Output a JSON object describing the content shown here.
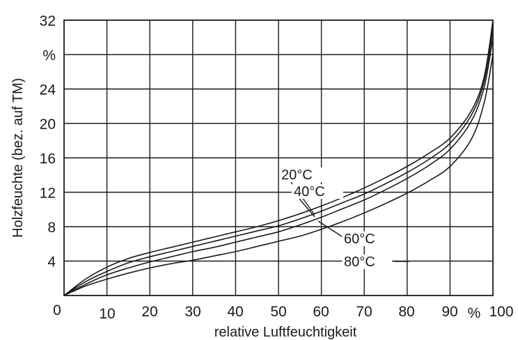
{
  "chart_data": {
    "type": "line",
    "title": "",
    "xlabel": "relative Luftfeuchtigkeit",
    "ylabel": "Holzfeuchte (bez. auf TM)",
    "xlim": [
      0,
      100
    ],
    "ylim": [
      0,
      32
    ],
    "grid": true,
    "x_ticks": [
      "0",
      "10",
      "20",
      "30",
      "40",
      "50",
      "60",
      "70",
      "80",
      "90",
      "100"
    ],
    "x_unit_label": "%",
    "y_ticks": [
      "4",
      "8",
      "12",
      "16",
      "20",
      "24",
      "32"
    ],
    "y_unit_label": "%",
    "series": [
      {
        "name": "20°C",
        "x": [
          0,
          5,
          10,
          15,
          20,
          25,
          30,
          35,
          40,
          45,
          50,
          55,
          60,
          65,
          70,
          75,
          80,
          85,
          90,
          95,
          98,
          100
        ],
        "y": [
          0,
          1.9,
          3.3,
          4.3,
          5.0,
          5.6,
          6.2,
          6.8,
          7.4,
          8.0,
          8.7,
          9.5,
          10.4,
          11.4,
          12.5,
          13.7,
          15.0,
          16.5,
          18.3,
          21.5,
          25.5,
          32
        ]
      },
      {
        "name": "40°C",
        "x": [
          0,
          5,
          10,
          15,
          20,
          25,
          30,
          35,
          40,
          45,
          50,
          55,
          60,
          65,
          70,
          75,
          80,
          85,
          90,
          95,
          98,
          100
        ],
        "y": [
          0,
          1.6,
          2.8,
          3.8,
          4.5,
          5.1,
          5.7,
          6.3,
          6.9,
          7.5,
          8.1,
          8.9,
          9.8,
          10.8,
          11.8,
          13.0,
          14.3,
          15.8,
          17.7,
          21.0,
          25.0,
          31
        ]
      },
      {
        "name": "60°C",
        "x": [
          0,
          5,
          10,
          15,
          20,
          25,
          30,
          35,
          40,
          45,
          50,
          55,
          60,
          65,
          70,
          75,
          80,
          85,
          90,
          95,
          98,
          100
        ],
        "y": [
          0,
          1.3,
          2.4,
          3.2,
          3.9,
          4.5,
          5.1,
          5.6,
          6.2,
          6.8,
          7.4,
          8.2,
          9.1,
          10.1,
          11.1,
          12.3,
          13.6,
          15.1,
          17.0,
          20.3,
          24.3,
          30
        ]
      },
      {
        "name": "80°C",
        "x": [
          0,
          5,
          10,
          15,
          20,
          25,
          30,
          35,
          40,
          45,
          50,
          55,
          60,
          65,
          70,
          75,
          80,
          85,
          90,
          95,
          98,
          100
        ],
        "y": [
          0,
          1.1,
          1.9,
          2.6,
          3.2,
          3.7,
          4.1,
          4.6,
          5.1,
          5.7,
          6.3,
          6.9,
          7.7,
          8.6,
          9.6,
          10.7,
          11.9,
          13.3,
          15.0,
          18.2,
          22.5,
          28
        ]
      }
    ]
  }
}
